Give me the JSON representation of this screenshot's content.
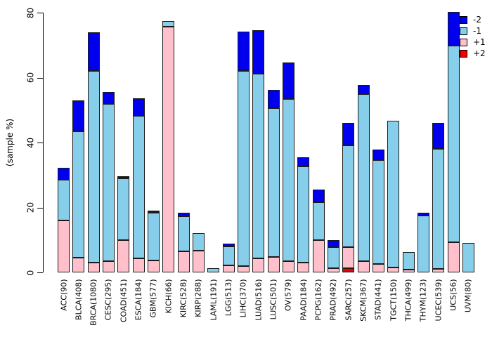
{
  "chart_data": {
    "type": "bar",
    "stacked": true,
    "title": "",
    "xlabel": "",
    "ylabel": "(sample %)",
    "ylim": [
      0,
      80
    ],
    "yticks": [
      0,
      20,
      40,
      60,
      80
    ],
    "grid": false,
    "legend_position": "top-right",
    "stack_order_bottom_to_top": [
      "+2",
      "+1",
      "-1",
      "-2"
    ],
    "categories": [
      "ACC(90)",
      "BLCA(408)",
      "BRCA(1080)",
      "CESC(295)",
      "COAD(451)",
      "ESCA(184)",
      "GBM(577)",
      "KICH(66)",
      "KIRC(528)",
      "KIRP(288)",
      "LAML(191)",
      "LGG(513)",
      "LIHC(370)",
      "LUAD(516)",
      "LUSC(501)",
      "OV(579)",
      "PAAD(184)",
      "PCPG(162)",
      "PRAD(492)",
      "SARC(257)",
      "SKCM(367)",
      "STAD(441)",
      "TGCT(150)",
      "THCA(499)",
      "THYM(123)",
      "UCEC(539)",
      "UCS(56)",
      "UVM(80)"
    ],
    "series": [
      {
        "name": "-2",
        "color": "#0000EE",
        "values": [
          3.8,
          9.5,
          12.0,
          3.5,
          0.7,
          5.4,
          0.7,
          0,
          0.9,
          0,
          0,
          1.0,
          12.2,
          13.3,
          5.8,
          11.2,
          2.9,
          3.9,
          2.2,
          6.9,
          2.8,
          3.1,
          0,
          0,
          0.9,
          8.0,
          10.5,
          0
        ]
      },
      {
        "name": "-1",
        "color": "#87CEEB",
        "values": [
          12.5,
          39.0,
          59.0,
          48.5,
          19.0,
          43.9,
          14.6,
          1.8,
          10.9,
          5.4,
          1.3,
          5.7,
          60.0,
          56.9,
          45.7,
          50.0,
          29.6,
          11.6,
          6.5,
          31.4,
          51.4,
          32.2,
          45.3,
          5.4,
          17.5,
          37.1,
          60.5,
          9.0
        ]
      },
      {
        "name": "+1",
        "color": "#FFC0CB",
        "values": [
          16.0,
          4.5,
          3.0,
          3.5,
          10.0,
          4.3,
          3.7,
          75.6,
          6.5,
          6.8,
          0,
          2.2,
          2.0,
          4.3,
          4.8,
          3.5,
          3.0,
          10.0,
          1.3,
          6.6,
          3.5,
          2.5,
          1.5,
          0.8,
          0,
          1.0,
          9.3,
          0
        ]
      },
      {
        "name": "+2",
        "color": "#EE0000",
        "values": [
          0,
          0,
          0,
          0,
          0,
          0,
          0,
          0,
          0,
          0,
          0,
          0,
          0,
          0,
          0,
          0,
          0,
          0,
          0,
          1.2,
          0,
          0,
          0,
          0,
          0,
          0,
          0,
          0
        ]
      }
    ],
    "legend_entries": [
      {
        "label": "-2",
        "color": "#0000EE"
      },
      {
        "label": "-1",
        "color": "#87CEEB"
      },
      {
        "label": "+1",
        "color": "#FFC0CB"
      },
      {
        "label": "+2",
        "color": "#EE0000"
      }
    ]
  }
}
